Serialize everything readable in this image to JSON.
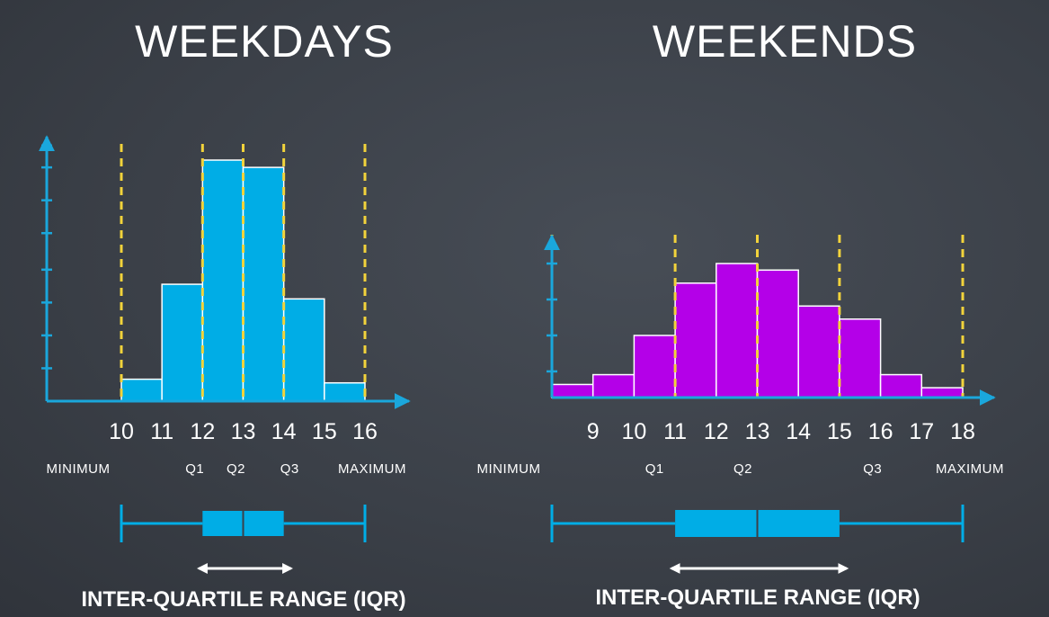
{
  "colors": {
    "background": "#3b4048",
    "axis": "#1aa7dc",
    "weekday_bar": "#00ade6",
    "weekend_bar": "#b400e8",
    "quartile_line": "#f2d33b",
    "box": "#00ade6",
    "text": "#ffffff"
  },
  "chart_data": [
    {
      "type": "bar",
      "title": "WEEKDAYS",
      "bin_edges": [
        10,
        11,
        12,
        13,
        14,
        15,
        16
      ],
      "values": [
        6,
        32,
        66,
        64,
        28,
        5
      ],
      "x_ticks": [
        "10",
        "11",
        "12",
        "13",
        "14",
        "15",
        "16"
      ],
      "xlim": [
        10,
        16
      ],
      "ylim": [
        0,
        70
      ],
      "y_ticks": [
        9,
        18,
        27,
        36,
        46,
        55,
        64,
        70
      ],
      "five_number_summary": {
        "minimum": 10,
        "q1": 12,
        "q2": 13,
        "q3": 14,
        "maximum": 16
      },
      "stat_labels": {
        "minimum": "MINIMUM",
        "q1": "Q1",
        "q2": "Q2",
        "q3": "Q3",
        "maximum": "MAXIMUM"
      },
      "iqr_label": "INTER-QUARTILE RANGE (IQR)"
    },
    {
      "type": "bar",
      "title": "WEEKENDS",
      "bin_edges": [
        8,
        9,
        10,
        11,
        12,
        13,
        14,
        15,
        16,
        17,
        18
      ],
      "values": [
        4,
        7,
        19,
        35,
        41,
        39,
        28,
        24,
        7,
        3
      ],
      "x_ticks": [
        "9",
        "10",
        "11",
        "12",
        "13",
        "14",
        "15",
        "16",
        "17",
        "18"
      ],
      "xlim": [
        8,
        18
      ],
      "ylim": [
        0,
        46
      ],
      "y_ticks": [
        8,
        19,
        30,
        41,
        46
      ],
      "five_number_summary": {
        "minimum": 8,
        "q1": 11,
        "q2": 13,
        "q3": 15,
        "maximum": 18
      },
      "stat_labels": {
        "minimum": "MINIMUM",
        "q1": "Q1",
        "q2": "Q2",
        "q3": "Q3",
        "maximum": "MAXIMUM"
      },
      "iqr_label": "INTER-QUARTILE RANGE (IQR)"
    }
  ]
}
